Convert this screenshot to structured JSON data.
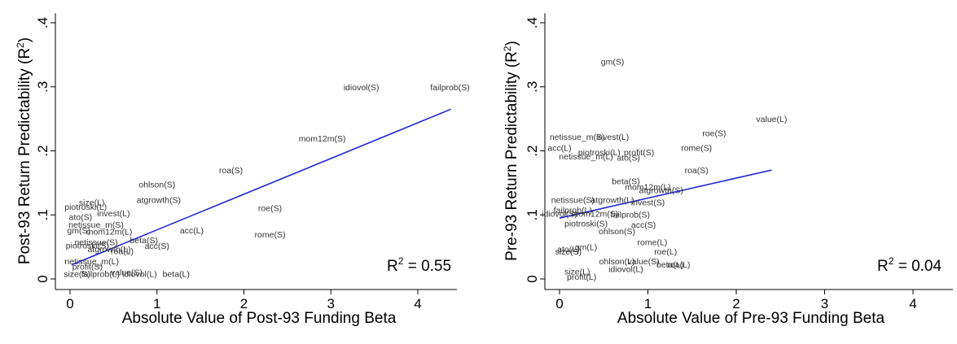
{
  "chart_data": [
    {
      "type": "scatter",
      "xlabel": "Absolute Value of Post-93 Funding Beta",
      "ylabel": "Post-93 Return Predictability (R",
      "ylabel_sup": "2",
      "ylabel_close": ")",
      "xlim": [
        -0.15,
        4.45
      ],
      "ylim": [
        -0.005,
        0.415
      ],
      "xticks": [
        {
          "v": 0,
          "label": "0"
        },
        {
          "v": 1,
          "label": "1"
        },
        {
          "v": 2,
          "label": "2"
        },
        {
          "v": 3,
          "label": "3"
        },
        {
          "v": 4,
          "label": "4"
        }
      ],
      "yticks": [
        {
          "v": 0,
          "label": "0"
        },
        {
          "v": 0.1,
          "label": ".1"
        },
        {
          "v": 0.2,
          "label": ".2"
        },
        {
          "v": 0.3,
          "label": ".3"
        },
        {
          "v": 0.4,
          "label": ".4"
        }
      ],
      "r2_label": "R",
      "r2_sup": "2",
      "r2_value": " = 0.55",
      "fit": {
        "x": [
          0.02,
          4.38
        ],
        "y": [
          0.022,
          0.265
        ]
      },
      "points": [
        {
          "label": "failprob(S)",
          "x": 4.37,
          "y": 0.3
        },
        {
          "label": "idiovol(S)",
          "x": 3.35,
          "y": 0.3
        },
        {
          "label": "mom12m(S)",
          "x": 2.9,
          "y": 0.22
        },
        {
          "label": "roa(S)",
          "x": 1.85,
          "y": 0.17
        },
        {
          "label": "ohlson(S)",
          "x": 1.0,
          "y": 0.148
        },
        {
          "label": "atgrowth(S)",
          "x": 1.02,
          "y": 0.124
        },
        {
          "label": "roe(S)",
          "x": 2.3,
          "y": 0.111
        },
        {
          "label": "acc(L)",
          "x": 1.4,
          "y": 0.076
        },
        {
          "label": "rome(S)",
          "x": 2.3,
          "y": 0.07
        },
        {
          "label": "beta(S)",
          "x": 0.85,
          "y": 0.061
        },
        {
          "label": "acc(S)",
          "x": 1.0,
          "y": 0.052
        },
        {
          "label": "beta(L)",
          "x": 1.22,
          "y": 0.008
        },
        {
          "label": "size(L)",
          "x": 0.25,
          "y": 0.12
        },
        {
          "label": "piotroski(L)",
          "x": 0.18,
          "y": 0.113
        },
        {
          "label": "invest(L)",
          "x": 0.5,
          "y": 0.103
        },
        {
          "label": "ato(S)",
          "x": 0.12,
          "y": 0.097
        },
        {
          "label": "netissue_m(S)",
          "x": 0.3,
          "y": 0.085
        },
        {
          "label": "gm(S)",
          "x": 0.1,
          "y": 0.076
        },
        {
          "label": "mom12m(L)",
          "x": 0.45,
          "y": 0.074
        },
        {
          "label": "netissue(S)",
          "x": 0.3,
          "y": 0.058
        },
        {
          "label": "piotroski(S)",
          "x": 0.2,
          "y": 0.053
        },
        {
          "label": "atgrowth(L)",
          "x": 0.45,
          "y": 0.047
        },
        {
          "label": "roa(L)",
          "x": 0.6,
          "y": 0.044
        },
        {
          "label": "netissue_m(L)",
          "x": 0.25,
          "y": 0.028
        },
        {
          "label": "profit(S)",
          "x": 0.2,
          "y": 0.02
        },
        {
          "label": "value(S)",
          "x": 0.65,
          "y": 0.011
        },
        {
          "label": "size(S)",
          "x": 0.08,
          "y": 0.008
        },
        {
          "label": "failprob(L)",
          "x": 0.35,
          "y": 0.008
        },
        {
          "label": "idiovol(L)",
          "x": 0.8,
          "y": 0.008
        }
      ]
    },
    {
      "type": "scatter",
      "xlabel": "Absolute Value of Pre-93 Funding Beta",
      "ylabel": "Pre-93 Return Predictability (R",
      "ylabel_sup": "2",
      "ylabel_close": ")",
      "xlim": [
        -0.15,
        4.45
      ],
      "ylim": [
        -0.005,
        0.415
      ],
      "xticks": [
        {
          "v": 0,
          "label": "0"
        },
        {
          "v": 1,
          "label": "1"
        },
        {
          "v": 2,
          "label": "2"
        },
        {
          "v": 3,
          "label": "3"
        },
        {
          "v": 4,
          "label": "4"
        }
      ],
      "yticks": [
        {
          "v": 0,
          "label": "0"
        },
        {
          "v": 0.1,
          "label": ".1"
        },
        {
          "v": 0.2,
          "label": ".2"
        },
        {
          "v": 0.3,
          "label": ".3"
        },
        {
          "v": 0.4,
          "label": ".4"
        }
      ],
      "r2_label": "R",
      "r2_sup": "2",
      "r2_value": " = 0.04",
      "fit": {
        "x": [
          0.0,
          2.4
        ],
        "y": [
          0.095,
          0.17
        ]
      },
      "points": [
        {
          "label": "gm(S)",
          "x": 0.6,
          "y": 0.34
        },
        {
          "label": "value(L)",
          "x": 2.4,
          "y": 0.25
        },
        {
          "label": "roe(S)",
          "x": 1.75,
          "y": 0.228
        },
        {
          "label": "rome(S)",
          "x": 1.55,
          "y": 0.205
        },
        {
          "label": "roa(S)",
          "x": 1.55,
          "y": 0.17
        },
        {
          "label": "netissue_m(S)",
          "x": 0.2,
          "y": 0.222
        },
        {
          "label": "invest(L)",
          "x": 0.6,
          "y": 0.222
        },
        {
          "label": "acc(L)",
          "x": 0.0,
          "y": 0.205
        },
        {
          "label": "piotroski(L)",
          "x": 0.45,
          "y": 0.198
        },
        {
          "label": "profit(S)",
          "x": 0.9,
          "y": 0.198
        },
        {
          "label": "netissue_m(L)",
          "x": 0.3,
          "y": 0.192
        },
        {
          "label": "ato(S)",
          "x": 0.78,
          "y": 0.19
        },
        {
          "label": "beta(S)",
          "x": 0.75,
          "y": 0.153
        },
        {
          "label": "mom12m(L)",
          "x": 1.0,
          "y": 0.144
        },
        {
          "label": "atgrowth(S)",
          "x": 1.15,
          "y": 0.139
        },
        {
          "label": "netissue(S)",
          "x": 0.15,
          "y": 0.124
        },
        {
          "label": "atgrowth(L)",
          "x": 0.6,
          "y": 0.124
        },
        {
          "label": "invest(S)",
          "x": 1.0,
          "y": 0.12
        },
        {
          "label": "failprob(L)",
          "x": 0.15,
          "y": 0.108
        },
        {
          "label": "idiovol(S)",
          "x": 0.0,
          "y": 0.102
        },
        {
          "label": "mom12m(S)",
          "x": 0.4,
          "y": 0.102
        },
        {
          "label": "failprob(S)",
          "x": 0.8,
          "y": 0.101
        },
        {
          "label": "piotroski(S)",
          "x": 0.3,
          "y": 0.087
        },
        {
          "label": "acc(S)",
          "x": 0.95,
          "y": 0.085
        },
        {
          "label": "ohlson(S)",
          "x": 0.65,
          "y": 0.075
        },
        {
          "label": "rome(L)",
          "x": 1.05,
          "y": 0.058
        },
        {
          "label": "ato(L)",
          "x": 0.1,
          "y": 0.047
        },
        {
          "label": "gm(L)",
          "x": 0.3,
          "y": 0.05
        },
        {
          "label": "size(S)",
          "x": 0.1,
          "y": 0.043
        },
        {
          "label": "roe(L)",
          "x": 1.2,
          "y": 0.043
        },
        {
          "label": "ohlson(L)",
          "x": 0.65,
          "y": 0.028
        },
        {
          "label": "value(S)",
          "x": 0.95,
          "y": 0.028
        },
        {
          "label": "beta(L)",
          "x": 1.25,
          "y": 0.023
        },
        {
          "label": "roa(L)",
          "x": 1.35,
          "y": 0.023
        },
        {
          "label": "idiovol(L)",
          "x": 0.75,
          "y": 0.016
        },
        {
          "label": "size(L)",
          "x": 0.2,
          "y": 0.012
        },
        {
          "label": "profit(L)",
          "x": 0.25,
          "y": 0.004
        }
      ]
    }
  ]
}
